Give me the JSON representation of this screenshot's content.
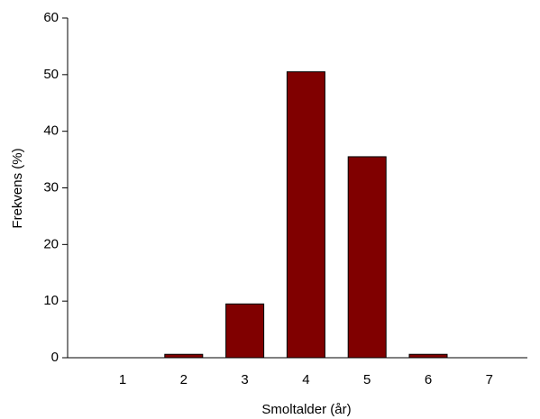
{
  "chart_data": {
    "type": "bar",
    "categories": [
      1,
      2,
      3,
      4,
      5,
      6,
      7
    ],
    "values": [
      0,
      0.6,
      9.5,
      50.5,
      35.5,
      0.6,
      0
    ],
    "color": "#800000",
    "xlabel": "Smoltalder (år)",
    "ylabel": "Frekvens (%)",
    "ylim": [
      0,
      60
    ],
    "yticks": [
      0,
      10,
      20,
      30,
      40,
      50,
      60
    ]
  }
}
